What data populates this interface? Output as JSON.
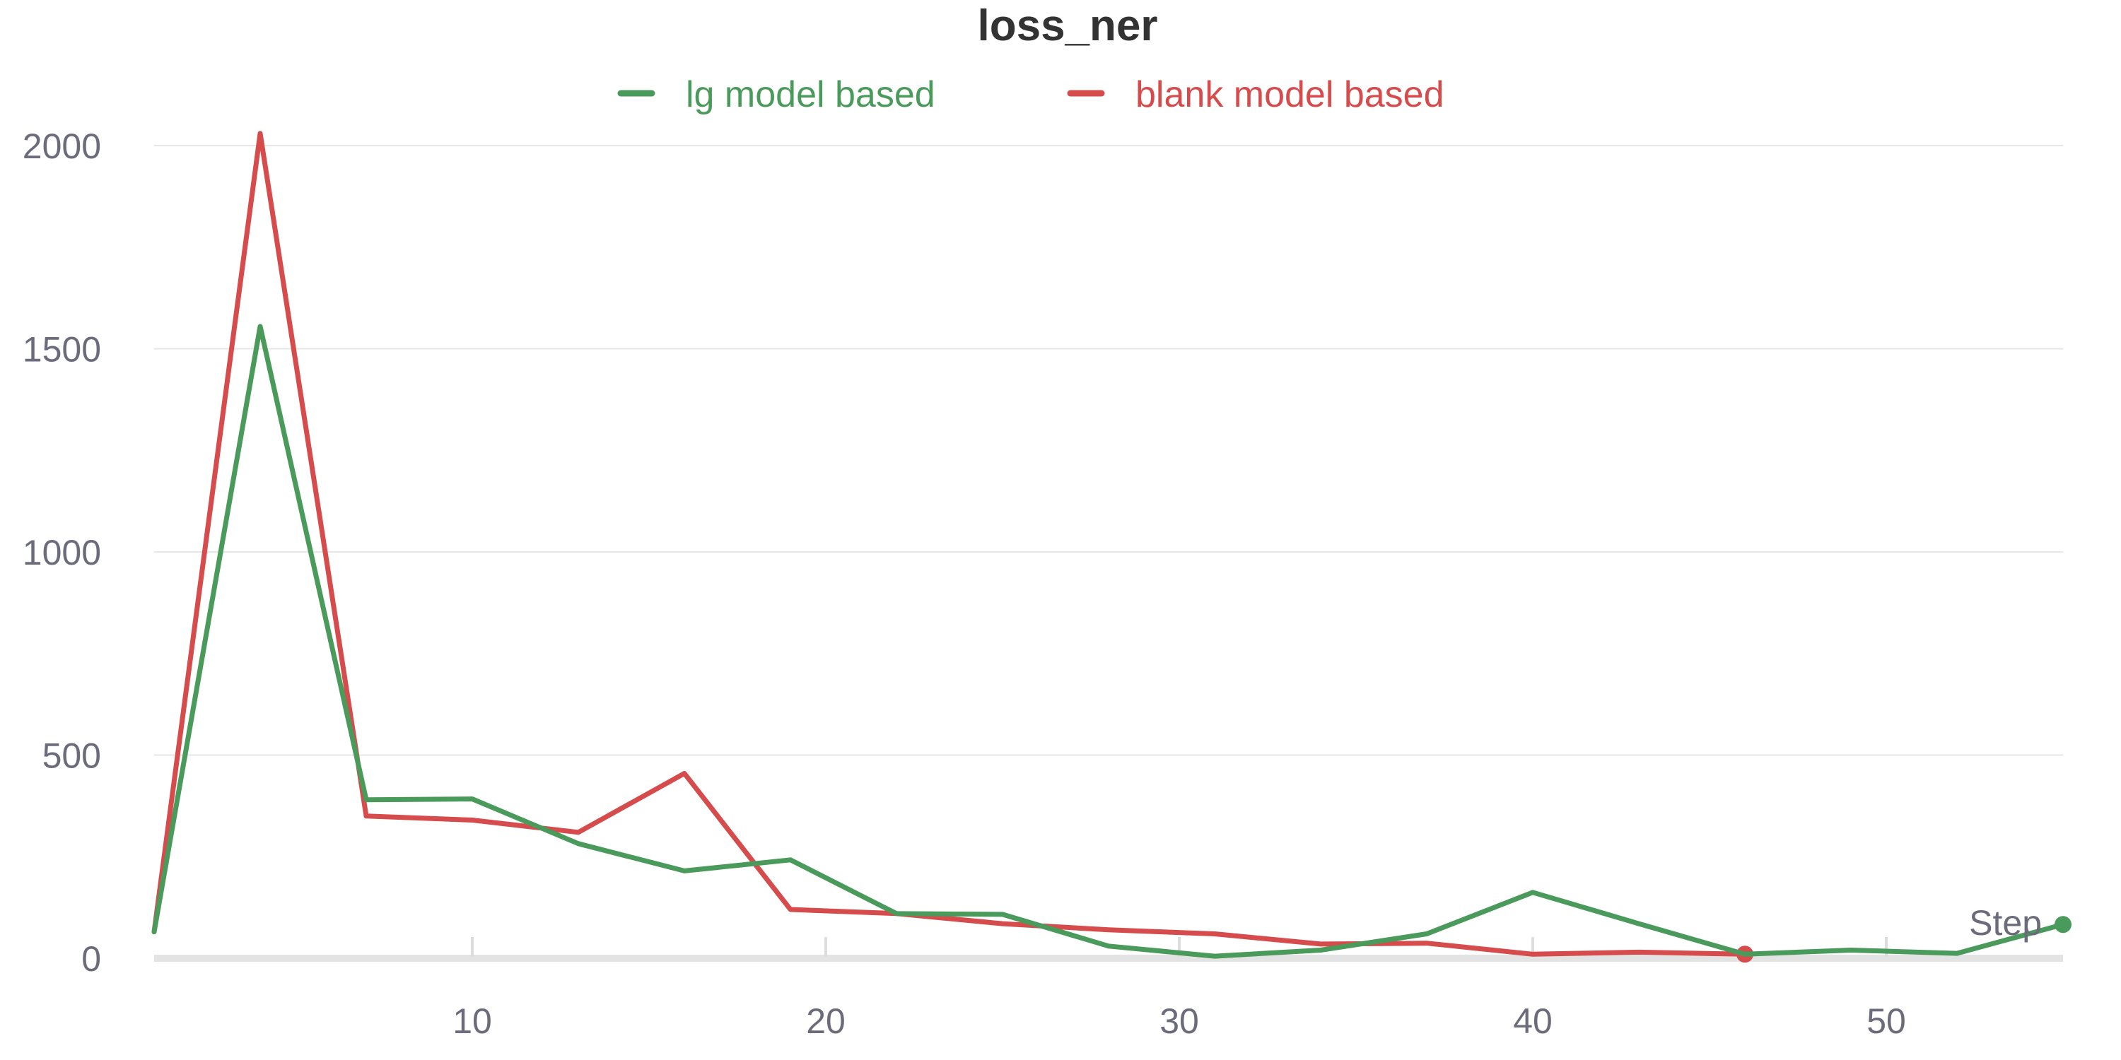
{
  "chart_data": {
    "type": "line",
    "title": "loss_ner",
    "xlabel": "Step",
    "ylabel": "",
    "x_ticks": [
      "10",
      "20",
      "30",
      "40",
      "50"
    ],
    "y_ticks": [
      "0",
      "500",
      "1000",
      "1500",
      "2000"
    ],
    "xlim": [
      1,
      55
    ],
    "ylim": [
      0,
      2000
    ],
    "grid": true,
    "legend_position": "top-center",
    "series": [
      {
        "name": "lg model based",
        "color": "#4a9a5c",
        "x": [
          1,
          4,
          7,
          10,
          13,
          16,
          19,
          22,
          25,
          28,
          31,
          34,
          37,
          40,
          43,
          46,
          49,
          52,
          55
        ],
        "y": [
          65,
          1555,
          390,
          392,
          282,
          215,
          242,
          110,
          108,
          30,
          5,
          20,
          60,
          162,
          85,
          10,
          20,
          12,
          83
        ]
      },
      {
        "name": "blank model based",
        "color": "#d64b4b",
        "x": [
          1,
          4,
          7,
          10,
          13,
          16,
          19,
          22,
          25,
          28,
          31,
          34,
          37,
          40,
          43,
          46
        ],
        "y": [
          65,
          2030,
          350,
          340,
          310,
          455,
          120,
          110,
          85,
          70,
          60,
          35,
          37,
          10,
          15,
          10
        ]
      }
    ]
  }
}
